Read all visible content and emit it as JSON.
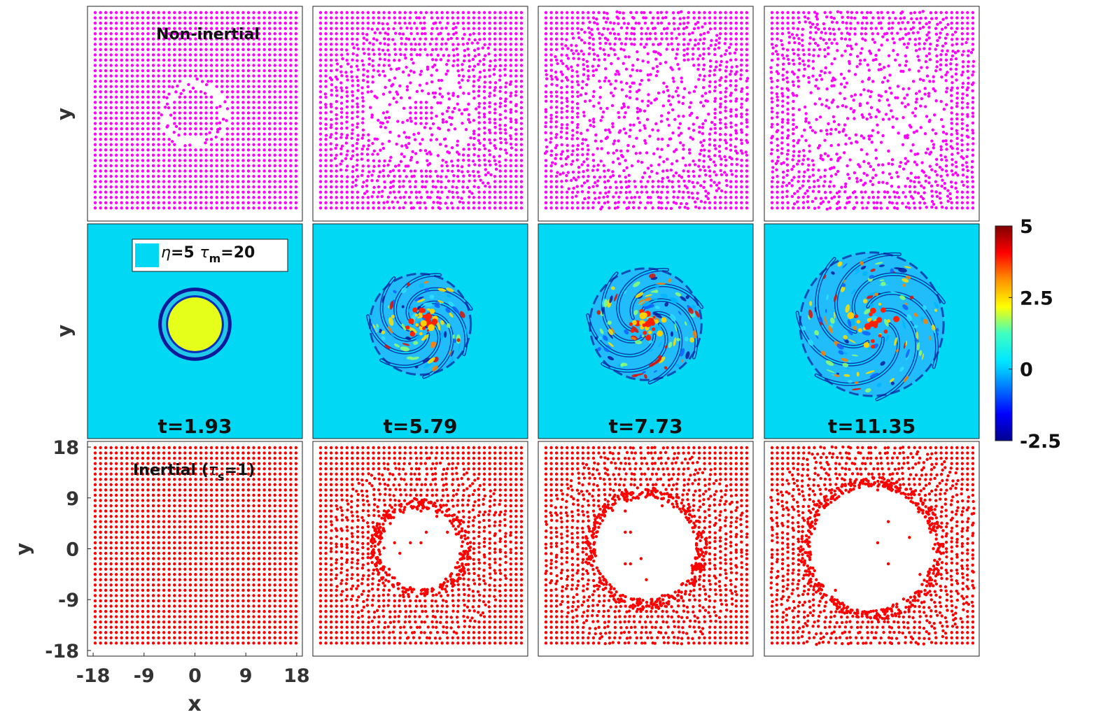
{
  "figure": {
    "type": "multi-panel simulation snapshots",
    "colors": {
      "non_inertial_particles": "#ff00ff",
      "inertial_particles": "#ff0000",
      "vorticity_background": "#00d8f4",
      "core": "#e6ff1a"
    }
  },
  "chart_data": [
    {
      "type": "scatter",
      "row": "Non-inertial",
      "title": "Non-inertial",
      "xlabel": "",
      "ylabel": "y",
      "panels": [
        {
          "t": 1.93,
          "dispersal_radius": 6.5,
          "core_radius": 4.5
        },
        {
          "t": 5.79,
          "dispersal_radius": 10.5,
          "core_radius": 2.5
        },
        {
          "t": 7.73,
          "dispersal_radius": 12.5,
          "core_radius": 0
        },
        {
          "t": 11.35,
          "dispersal_radius": 14.5,
          "core_radius": 0
        }
      ]
    },
    {
      "type": "heatmap",
      "row": "vorticity field",
      "ylabel": "y",
      "legend_label": "η=5  τm=20",
      "legend_parts": {
        "eta": "η",
        "eta_value": "=5",
        "tau": "τ",
        "tau_sub": "m",
        "tau_value": "=20"
      },
      "time_labels": [
        "t=1.93",
        "t=5.79",
        "t=7.73",
        "t=11.35"
      ],
      "panels": [
        {
          "t": 1.93,
          "vortex_radius": 6.5
        },
        {
          "t": 5.79,
          "vortex_radius": 9.5
        },
        {
          "t": 7.73,
          "vortex_radius": 10.5
        },
        {
          "t": 11.35,
          "vortex_radius": 13.5
        }
      ],
      "colorbar": {
        "min": -2.5,
        "max": 5,
        "ticks": [
          "5",
          "2.5",
          "0",
          "-2.5"
        ],
        "colormap": "jet"
      }
    },
    {
      "type": "scatter",
      "row": "Inertial",
      "title": "Inertial (τs=1)",
      "title_parts": {
        "pre": "Inertial (",
        "tau": "τ",
        "sub": "s",
        "post": "=1)"
      },
      "xlabel": "x",
      "ylabel": "y",
      "xlim": [
        -19,
        19
      ],
      "ylim": [
        -19,
        19
      ],
      "xticks": [
        "-18",
        "-9",
        "0",
        "9",
        "18"
      ],
      "yticks": [
        "18",
        "9",
        "0",
        "-9",
        "-18"
      ],
      "panels": [
        {
          "t": 1.93,
          "void_radius": 0,
          "ring_radius": 6.5
        },
        {
          "t": 5.79,
          "void_radius": 7.5,
          "ring_radius": 9.5
        },
        {
          "t": 7.73,
          "void_radius": 9.5,
          "ring_radius": 11.5
        },
        {
          "t": 11.35,
          "void_radius": 11.5,
          "ring_radius": 13.5
        }
      ]
    }
  ]
}
